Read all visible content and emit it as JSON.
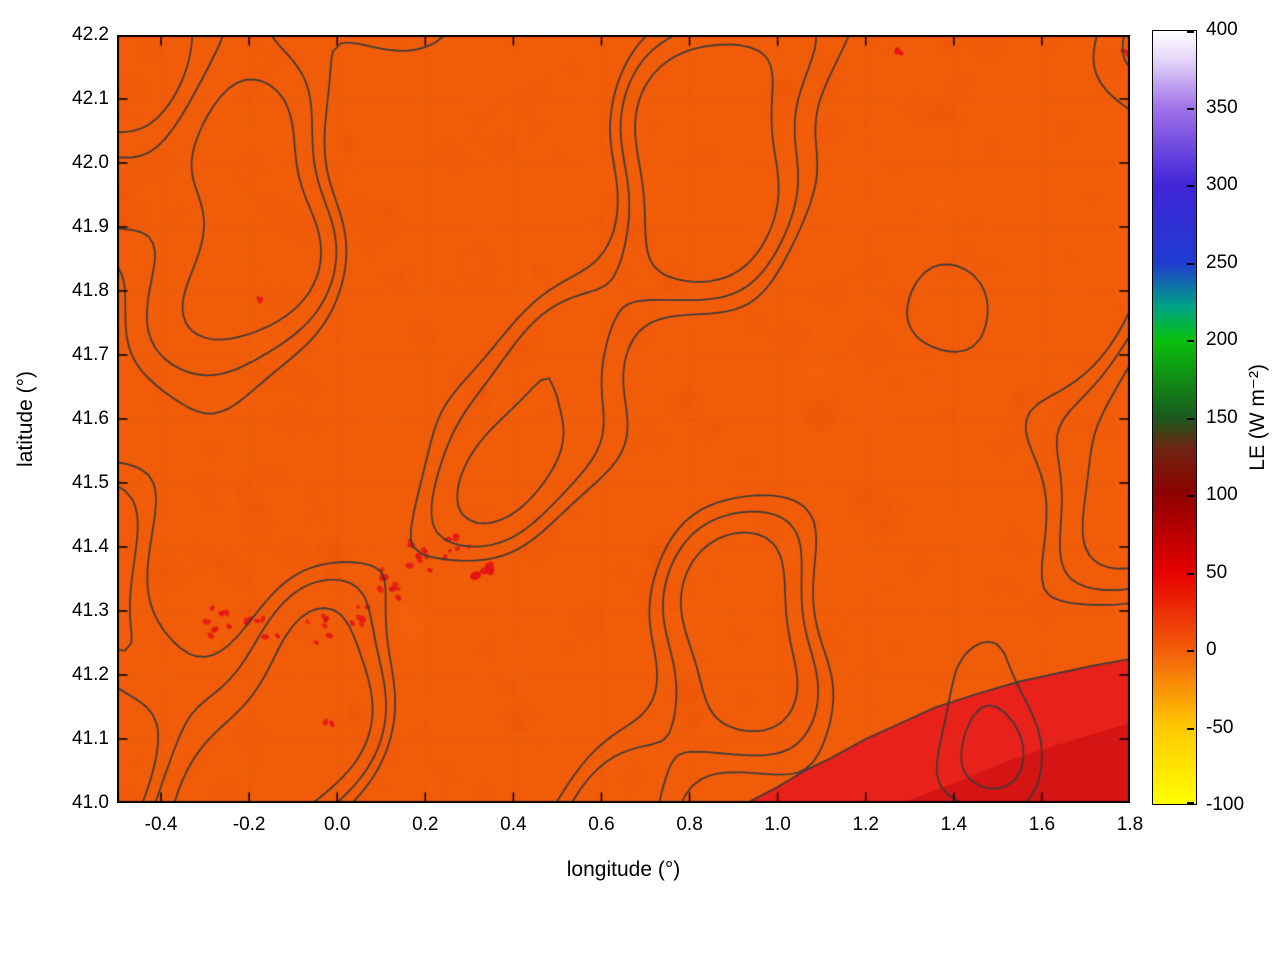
{
  "chart_data": {
    "type": "heatmap",
    "title": "",
    "xlabel": "longitude (°)",
    "ylabel": "latitude (°)",
    "value_label": "LE (W m⁻²)",
    "xlim": [
      -0.5,
      1.8
    ],
    "ylim": [
      41.0,
      42.2
    ],
    "grid": true,
    "x_ticks": {
      "values": [
        -0.4,
        -0.2,
        0.0,
        0.2,
        0.4,
        0.6,
        0.8,
        1.0,
        1.2,
        1.4,
        1.6,
        1.8
      ],
      "labels": [
        "-0.4",
        "-0.2",
        "0.0",
        "0.2",
        "0.4",
        "0.6",
        "0.8",
        "1.0",
        "1.2",
        "1.4",
        "1.6",
        "1.8"
      ]
    },
    "y_ticks": {
      "values": [
        41.0,
        41.1,
        41.2,
        41.3,
        41.4,
        41.5,
        41.6,
        41.7,
        41.8,
        41.9,
        42.0,
        42.1,
        42.2
      ],
      "labels": [
        "41.0",
        "41.1",
        "41.2",
        "41.3",
        "41.4",
        "41.5",
        "41.6",
        "41.7",
        "41.8",
        "41.9",
        "42.0",
        "42.1",
        "42.2"
      ]
    },
    "colorbar": {
      "label": "LE (W m⁻²)",
      "min": -100,
      "max": 400,
      "tick_values": [
        -100,
        -50,
        0,
        50,
        100,
        150,
        200,
        250,
        300,
        350,
        400
      ],
      "tick_labels": [
        "-100",
        "-50",
        "0",
        "50",
        "100",
        "150",
        "200",
        "250",
        "300",
        "350",
        "400"
      ],
      "stops": [
        {
          "value": -100,
          "color": "#ffff00"
        },
        {
          "value": -50,
          "color": "#ffc800"
        },
        {
          "value": 0,
          "color": "#f25c0a"
        },
        {
          "value": 50,
          "color": "#e60000"
        },
        {
          "value": 100,
          "color": "#8f0000"
        },
        {
          "value": 130,
          "color": "#6e2410"
        },
        {
          "value": 150,
          "color": "#1a5a1e"
        },
        {
          "value": 200,
          "color": "#08c00c"
        },
        {
          "value": 222,
          "color": "#00a287"
        },
        {
          "value": 250,
          "color": "#1f3bd0"
        },
        {
          "value": 300,
          "color": "#4024d8"
        },
        {
          "value": 350,
          "color": "#a071e8"
        },
        {
          "value": 382,
          "color": "#e6d8fa"
        },
        {
          "value": 400,
          "color": "#ffffff"
        }
      ]
    },
    "field": {
      "description": "LE near 0 W m⁻² (orange) over the whole land area with dark terrain contour lines; higher LE (~50 W m⁻², red) over the sea in the south-east corner and in scattered small patches around lat 41.25–41.40",
      "base_value": 0,
      "base_color": "#f15c09",
      "mottle": {
        "count": 450,
        "alpha": 0.08,
        "dark": "#e04e04",
        "light": "#fb6d14",
        "seed": 99
      },
      "contour_overlay": {
        "color": "#3b3b3b",
        "line_width": 1.7,
        "levels": [
          0.3,
          0.85,
          1.6
        ],
        "seed": 11,
        "wavelengths": [
          480,
          420,
          360,
          300,
          260,
          220,
          180,
          150
        ],
        "amplitudes": [
          1.0,
          0.9,
          0.8,
          0.7,
          0.5,
          0.4,
          0.3,
          0.25
        ]
      },
      "regions": [
        {
          "name": "sea-southeast",
          "value": 50,
          "color": "#e8211b",
          "boundary": [
            [
              0.93,
              41.0
            ],
            [
              1.0,
              41.025
            ],
            [
              1.06,
              41.05
            ],
            [
              1.12,
              41.07
            ],
            [
              1.2,
              41.1
            ],
            [
              1.28,
              41.125
            ],
            [
              1.36,
              41.15
            ],
            [
              1.45,
              41.17
            ],
            [
              1.55,
              41.19
            ],
            [
              1.65,
              41.205
            ],
            [
              1.72,
              41.215
            ],
            [
              1.8,
              41.225
            ]
          ],
          "close_via": [
            [
              1.8,
              41.0
            ]
          ]
        },
        {
          "name": "sea-corner-deep",
          "value": 62,
          "color": "#d51414",
          "boundary": [
            [
              1.28,
              41.0
            ],
            [
              1.4,
              41.03
            ],
            [
              1.52,
              41.065
            ],
            [
              1.63,
              41.09
            ],
            [
              1.73,
              41.11
            ],
            [
              1.8,
              41.125
            ]
          ],
          "close_via": [
            [
              1.8,
              41.0
            ]
          ]
        }
      ],
      "speckles": {
        "value": 45,
        "color": "#e41414",
        "seed": 5,
        "clusters": [
          {
            "lon": -0.27,
            "lat": 41.285,
            "n": 8,
            "spread": 0.035
          },
          {
            "lon": -0.17,
            "lat": 41.27,
            "n": 7,
            "spread": 0.04
          },
          {
            "lon": -0.05,
            "lat": 41.27,
            "n": 6,
            "spread": 0.035
          },
          {
            "lon": 0.04,
            "lat": 41.3,
            "n": 6,
            "spread": 0.03
          },
          {
            "lon": 0.12,
            "lat": 41.345,
            "n": 8,
            "spread": 0.035
          },
          {
            "lon": 0.19,
            "lat": 41.385,
            "n": 9,
            "spread": 0.035
          },
          {
            "lon": 0.27,
            "lat": 41.4,
            "n": 7,
            "spread": 0.03
          },
          {
            "lon": 0.33,
            "lat": 41.365,
            "n": 5,
            "spread": 0.02,
            "r": 5
          },
          {
            "lon": -0.18,
            "lat": 41.79,
            "n": 2,
            "spread": 0.01
          },
          {
            "lon": 1.28,
            "lat": 42.18,
            "n": 3,
            "spread": 0.015
          },
          {
            "lon": 1.79,
            "lat": 42.17,
            "n": 3,
            "spread": 0.012
          },
          {
            "lon": -0.02,
            "lat": 41.13,
            "n": 2,
            "spread": 0.012
          }
        ]
      }
    }
  }
}
